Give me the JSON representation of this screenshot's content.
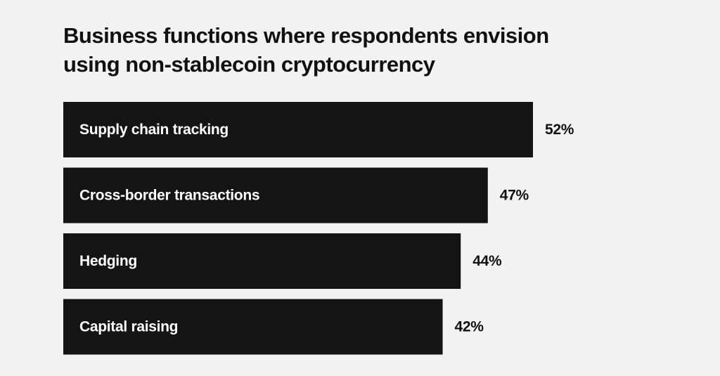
{
  "chart_data": {
    "type": "bar",
    "orientation": "horizontal",
    "title_lines": [
      "Business functions where respondents envision",
      "using non-stablecoin cryptocurrency"
    ],
    "categories": [
      "Supply chain tracking",
      "Cross-border transactions",
      "Hedging",
      "Capital raising"
    ],
    "values": [
      52,
      47,
      44,
      42
    ],
    "value_labels": [
      "52%",
      "47%",
      "44%",
      "42%"
    ],
    "unit": "%",
    "xlim": [
      0,
      52
    ],
    "grid": false,
    "legend": "none",
    "colors": {
      "background": "#f2f2f2",
      "bar": "#141414",
      "bar_text": "#ffffff",
      "value_text": "#111111",
      "title_text": "#111111"
    }
  }
}
